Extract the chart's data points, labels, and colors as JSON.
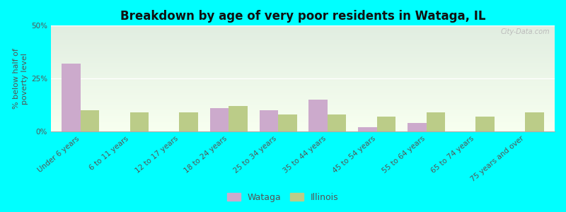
{
  "title": "Breakdown by age of very poor residents in Wataga, IL",
  "ylabel": "% below half of\npoverty level",
  "categories": [
    "Under 6 years",
    "6 to 11 years",
    "12 to 17 years",
    "18 to 24 years",
    "25 to 34 years",
    "35 to 44 years",
    "45 to 54 years",
    "55 to 64 years",
    "65 to 74 years",
    "75 years and over"
  ],
  "wataga_values": [
    32,
    0,
    0,
    11,
    10,
    15,
    2,
    4,
    0,
    0
  ],
  "illinois_values": [
    10,
    9,
    9,
    12,
    8,
    8,
    7,
    9,
    7,
    9
  ],
  "wataga_color": "#ccaacc",
  "illinois_color": "#bbcc88",
  "wataga_label": "Wataga",
  "illinois_label": "Illinois",
  "ylim": [
    0,
    50
  ],
  "yticks": [
    0,
    25,
    50
  ],
  "ytick_labels": [
    "0%",
    "25%",
    "50%"
  ],
  "outer_background": "#00ffff",
  "bar_width": 0.38,
  "title_fontsize": 12,
  "axis_fontsize": 8,
  "tick_fontsize": 7.5,
  "legend_fontsize": 9
}
